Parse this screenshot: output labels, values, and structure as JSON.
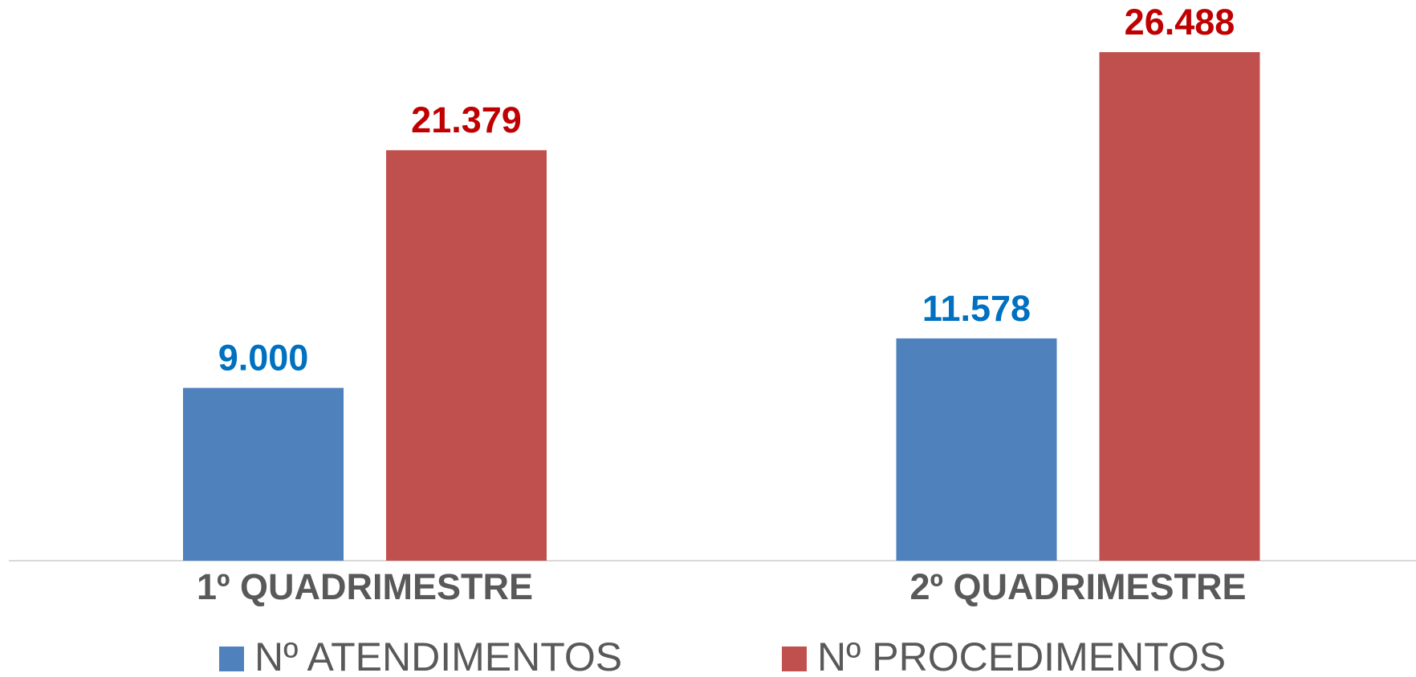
{
  "chart_data": {
    "type": "bar",
    "categories": [
      "1º QUADRIMESTRE",
      "2º QUADRIMESTRE"
    ],
    "series": [
      {
        "name": "Nº ATENDIMENTOS",
        "color": "#4f81bd",
        "label_color": "#0070c0",
        "values": [
          9000,
          11578
        ],
        "value_labels": [
          "9.000",
          "11.578"
        ]
      },
      {
        "name": "Nº PROCEDIMENTOS",
        "color": "#c0504d",
        "label_color": "#c00000",
        "values": [
          21379,
          26488
        ],
        "value_labels": [
          "21.379",
          "26.488"
        ]
      }
    ]
  }
}
